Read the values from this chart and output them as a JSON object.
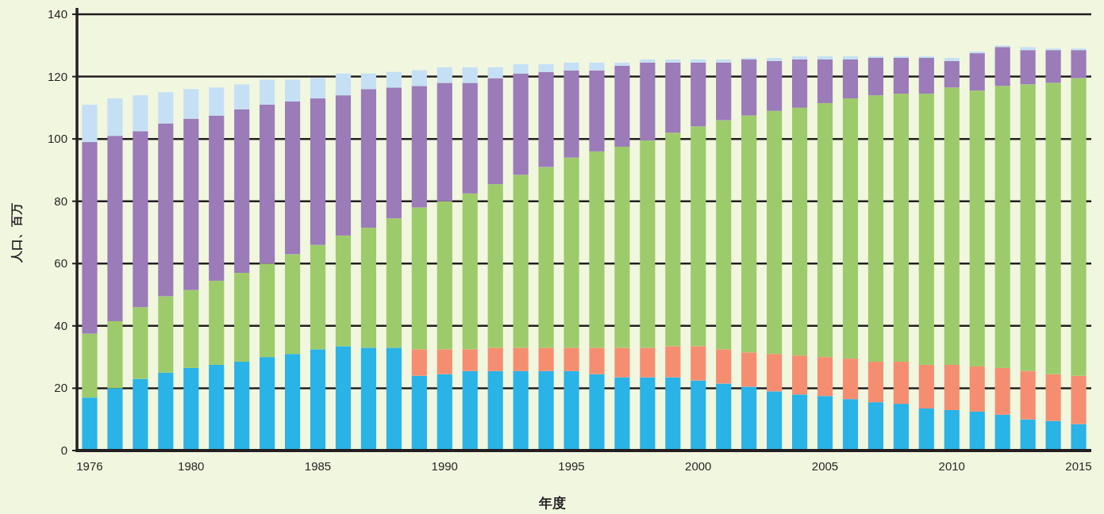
{
  "chart_data": {
    "type": "bar",
    "stacked": true,
    "xlabel": "年度",
    "ylabel": "人口、百万",
    "categories": [
      "1976",
      null,
      null,
      null,
      "1980",
      null,
      null,
      null,
      null,
      "1985",
      null,
      null,
      null,
      null,
      "1990",
      null,
      null,
      null,
      null,
      "1995",
      null,
      null,
      null,
      null,
      "2000",
      null,
      null,
      null,
      null,
      "2005",
      null,
      null,
      null,
      null,
      "2010",
      null,
      null,
      null,
      null,
      "2015"
    ],
    "series": [
      {
        "color": "#29b3e6",
        "values": [
          17,
          20,
          23,
          25,
          26.5,
          27.5,
          28.5,
          30,
          31,
          32.5,
          33.5,
          33,
          33,
          24,
          24.5,
          25.5,
          25.5,
          25.5,
          25.5,
          25.5,
          24.5,
          23.5,
          23.5,
          23.5,
          22.5,
          21.5,
          20.5,
          19,
          18,
          17.5,
          16.5,
          15.5,
          15,
          13.5,
          13,
          12.5,
          11.5,
          10,
          9.5,
          8.5
        ]
      },
      {
        "color": "#f58e70",
        "values": [
          null,
          null,
          null,
          null,
          null,
          null,
          null,
          null,
          null,
          null,
          null,
          null,
          null,
          8.5,
          8,
          7,
          7.5,
          7.5,
          7.5,
          7.5,
          8.5,
          9.5,
          9.5,
          10,
          11,
          11,
          11,
          12,
          12.5,
          12.5,
          13,
          13,
          13.5,
          14,
          14.5,
          14.5,
          15,
          15.5,
          15,
          15.5
        ]
      },
      {
        "color": "#9dcb6b",
        "values": [
          20.5,
          21.5,
          23,
          24.5,
          25,
          27,
          28.5,
          30,
          32,
          33.5,
          35.5,
          38.5,
          41.5,
          45.5,
          47.5,
          50,
          52.5,
          55.5,
          58,
          61,
          63,
          64.5,
          66.5,
          68.5,
          70.5,
          73.5,
          76,
          78,
          79.5,
          81.5,
          83.5,
          85.5,
          86,
          87,
          89,
          88.5,
          90.5,
          92,
          93.5,
          95.5
        ]
      },
      {
        "color": "#9b7bb8",
        "values": [
          61.5,
          59.5,
          56.5,
          55.5,
          55,
          53,
          52.5,
          51,
          49,
          47,
          45,
          44.5,
          42,
          39,
          38,
          35.5,
          34,
          32.5,
          30.5,
          28,
          26,
          26,
          25,
          22.5,
          20.5,
          18.5,
          18,
          16,
          15.5,
          14,
          12.5,
          12,
          11.5,
          11.5,
          8.5,
          12,
          12.5,
          11,
          10.5,
          9
        ]
      },
      {
        "color": "#c5e0f4",
        "values": [
          12,
          12,
          11.5,
          10,
          9.5,
          9,
          8,
          8,
          7,
          6.5,
          7,
          5,
          5,
          5,
          5,
          5,
          3.5,
          3,
          2.5,
          2.5,
          2.5,
          1,
          1,
          1,
          1,
          1,
          0.5,
          1,
          1,
          1,
          1,
          0.5,
          0.5,
          0.5,
          1,
          0.5,
          0.5,
          1,
          0.5,
          0.5
        ]
      }
    ],
    "ylim": [
      0,
      140
    ],
    "yticks": [
      0,
      20,
      40,
      60,
      80,
      100,
      120,
      140
    ],
    "grid": "y"
  }
}
